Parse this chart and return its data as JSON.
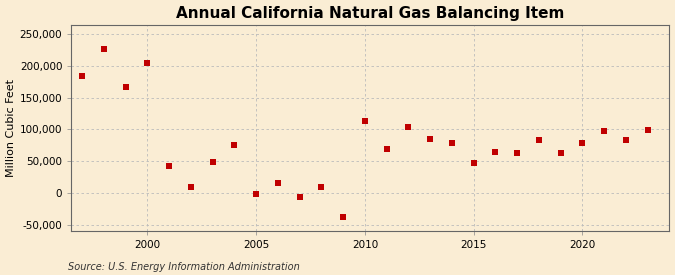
{
  "title": "Annual California Natural Gas Balancing Item",
  "ylabel": "Million Cubic Feet",
  "source": "Source: U.S. Energy Information Administration",
  "background_color": "#faedd4",
  "plot_background_color": "#faedd4",
  "marker_color": "#c00000",
  "marker_size": 4,
  "years": [
    1997,
    1998,
    1999,
    2000,
    2001,
    2002,
    2003,
    2004,
    2005,
    2006,
    2007,
    2008,
    2009,
    2010,
    2011,
    2012,
    2013,
    2014,
    2015,
    2016,
    2017,
    2018,
    2019,
    2020,
    2021,
    2022,
    2023
  ],
  "values": [
    184000,
    226000,
    166000,
    205000,
    42000,
    9000,
    49000,
    75000,
    -1000,
    15000,
    -7000,
    10000,
    -38000,
    113000,
    69000,
    104000,
    85000,
    78000,
    47000,
    65000,
    63000,
    84000,
    63000,
    78000,
    97000,
    84000,
    99000
  ],
  "ylim": [
    -60000,
    265000
  ],
  "yticks": [
    -50000,
    0,
    50000,
    100000,
    150000,
    200000,
    250000
  ],
  "xlim": [
    1996.5,
    2024
  ],
  "xticks": [
    2000,
    2005,
    2010,
    2015,
    2020
  ],
  "grid_color": "#bbbbbb",
  "title_fontsize": 11,
  "label_fontsize": 8,
  "tick_fontsize": 7.5,
  "source_fontsize": 7
}
